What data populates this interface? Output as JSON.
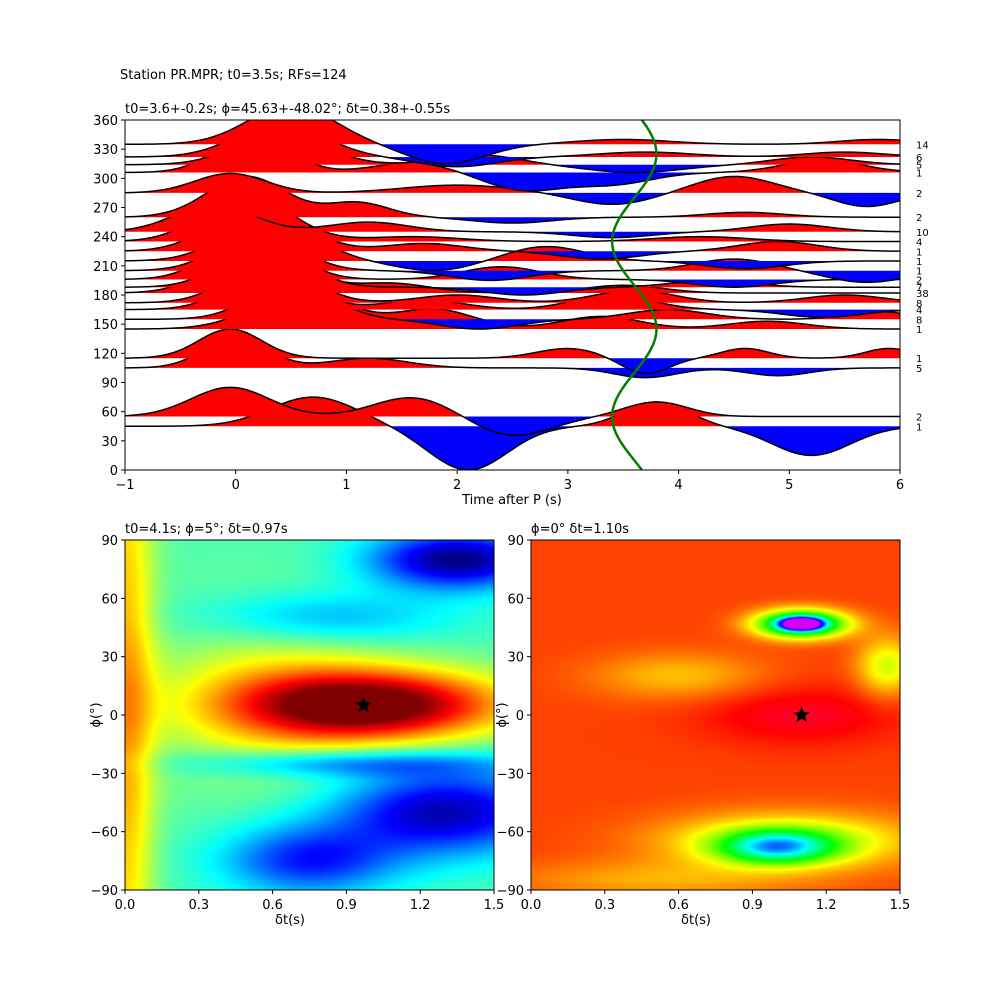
{
  "figure_title": "Station PR.MPR; t0=3.5s; RFs=124",
  "chart_data": [
    {
      "id": "rf-panel",
      "type": "line",
      "title": "t0=3.6+-0.2s; ϕ=45.63+-48.02°; δt=0.38+-0.55s",
      "xlabel": "Time after P (s)",
      "ylabel": "",
      "xlim": [
        -1,
        6
      ],
      "ylim": [
        0,
        360
      ],
      "xticks": [
        -1,
        0,
        1,
        2,
        3,
        4,
        5,
        6
      ],
      "yticks": [
        0,
        30,
        60,
        90,
        120,
        150,
        180,
        210,
        240,
        270,
        300,
        330,
        360
      ],
      "fill_positive": "#ff0000",
      "fill_negative": "#0000ff",
      "t0_curve": {
        "color": "#008000",
        "mean_time": 3.6,
        "amplitude": 0.2
      },
      "traces": [
        {
          "baz": 45,
          "count": "1",
          "pulses": [
            [
              0.7,
              1.0,
              30,
              0.55
            ],
            [
              2.1,
              -1.1,
              -45,
              0.5
            ],
            [
              3.8,
              0.4,
              25,
              0.4
            ],
            [
              5.2,
              -0.5,
              -30,
              0.5
            ]
          ]
        },
        {
          "baz": 55,
          "count": "2",
          "pulses": [
            [
              -0.05,
              1.0,
              30,
              0.5
            ],
            [
              1.6,
              0.6,
              20,
              0.5
            ],
            [
              2.5,
              -0.6,
              -20,
              0.5
            ],
            [
              3.8,
              0.3,
              15,
              0.4
            ]
          ]
        },
        {
          "baz": 105,
          "count": "5",
          "pulses": [
            [
              0.0,
              1.0,
              32,
              0.4
            ],
            [
              1.2,
              0.3,
              10,
              0.5
            ],
            [
              3.7,
              -0.6,
              -10,
              0.4
            ],
            [
              4.9,
              -0.3,
              -8,
              0.4
            ]
          ]
        },
        {
          "baz": 115,
          "count": "1",
          "pulses": [
            [
              -0.05,
              1.0,
              30,
              0.4
            ],
            [
              3.0,
              0.7,
              10,
              0.4
            ],
            [
              3.7,
              -0.8,
              -16,
              0.3
            ],
            [
              4.6,
              0.5,
              10,
              0.3
            ],
            [
              5.9,
              0.4,
              10,
              0.3
            ]
          ]
        },
        {
          "baz": 145,
          "count": "1",
          "pulses": [
            [
              0.6,
              1.0,
              38,
              0.6
            ],
            [
              1.8,
              0.7,
              20,
              0.5
            ],
            [
              3.3,
              0.5,
              13,
              0.5
            ],
            [
              4.8,
              0.3,
              8,
              0.5
            ]
          ]
        },
        {
          "baz": 155,
          "count": "8",
          "pulses": [
            [
              0.5,
              1.0,
              38,
              0.5
            ],
            [
              2.2,
              -0.5,
              -10,
              0.5
            ],
            [
              3.9,
              0.4,
              10,
              0.5
            ],
            [
              5.8,
              0.4,
              8,
              0.4
            ]
          ]
        },
        {
          "baz": 165,
          "count": "4",
          "pulses": [
            [
              0.3,
              1.0,
              40,
              0.5
            ],
            [
              1.7,
              0.4,
              10,
              0.5
            ],
            [
              3.4,
              0.5,
              15,
              0.5
            ],
            [
              5.3,
              -0.3,
              -8,
              0.5
            ]
          ]
        },
        {
          "baz": 172,
          "count": "8",
          "pulses": [
            [
              0.3,
              1.0,
              45,
              0.5
            ],
            [
              2.0,
              0.4,
              8,
              0.5
            ],
            [
              3.6,
              0.6,
              13,
              0.5
            ],
            [
              5.5,
              0.3,
              8,
              0.5
            ]
          ]
        },
        {
          "baz": 182,
          "count": "38",
          "pulses": [
            [
              0.2,
              1.0,
              48,
              0.55
            ],
            [
              1.4,
              0.4,
              10,
              0.5
            ],
            [
              3.5,
              0.5,
              8,
              0.5
            ]
          ]
        },
        {
          "baz": 188,
          "count": "7",
          "pulses": [
            [
              0.25,
              1.0,
              45,
              0.5
            ],
            [
              2.6,
              -0.4,
              -8,
              0.5
            ],
            [
              4.3,
              0.3,
              7,
              0.5
            ]
          ]
        },
        {
          "baz": 196,
          "count": "2",
          "pulses": [
            [
              0.15,
              1.0,
              48,
              0.5
            ],
            [
              2.4,
              0.6,
              13,
              0.5
            ],
            [
              4.5,
              -0.4,
              -8,
              0.5
            ]
          ]
        },
        {
          "baz": 205,
          "count": "1",
          "pulses": [
            [
              0.2,
              1.0,
              40,
              0.5
            ],
            [
              2.3,
              -0.3,
              -10,
              0.5
            ],
            [
              4.5,
              0.5,
              12,
              0.5
            ],
            [
              5.7,
              -0.6,
              -12,
              0.5
            ]
          ]
        },
        {
          "baz": 215,
          "count": "1",
          "pulses": [
            [
              0.3,
              1.0,
              45,
              0.55
            ],
            [
              1.8,
              -0.4,
              -10,
              0.5
            ],
            [
              2.8,
              0.6,
              15,
              0.5
            ],
            [
              4.6,
              -0.5,
              -8,
              0.5
            ]
          ]
        },
        {
          "baz": 225,
          "count": "1",
          "pulses": [
            [
              0.2,
              1.0,
              50,
              0.55
            ],
            [
              1.7,
              0.3,
              8,
              0.5
            ],
            [
              3.3,
              -0.3,
              -8,
              0.5
            ],
            [
              4.9,
              0.5,
              10,
              0.5
            ]
          ]
        },
        {
          "baz": 235,
          "count": "4",
          "pulses": [
            [
              0.1,
              1.0,
              48,
              0.55
            ],
            [
              1.6,
              0.2,
              5,
              0.6
            ],
            [
              4.2,
              0.2,
              5,
              0.6
            ]
          ]
        },
        {
          "baz": 245,
          "count": "10",
          "pulses": [
            [
              -0.2,
              1.0,
              28,
              0.5
            ],
            [
              1.2,
              0.3,
              10,
              0.5
            ],
            [
              3.4,
              -0.3,
              -6,
              0.5
            ],
            [
              5.0,
              0.3,
              8,
              0.5
            ]
          ]
        },
        {
          "baz": 260,
          "count": "2",
          "pulses": [
            [
              0.1,
              1.0,
              42,
              0.5
            ],
            [
              1.1,
              0.5,
              15,
              0.4
            ],
            [
              2.5,
              -0.3,
              -6,
              0.5
            ],
            [
              4.6,
              0.2,
              5,
              0.5
            ]
          ]
        },
        {
          "baz": 285,
          "count": "2",
          "pulses": [
            [
              -0.05,
              1.0,
              20,
              0.45
            ],
            [
              2.0,
              0.3,
              8,
              0.7
            ],
            [
              3.4,
              -0.4,
              -12,
              0.5
            ],
            [
              4.5,
              0.7,
              17,
              0.5
            ],
            [
              5.7,
              -0.6,
              -14,
              0.4
            ]
          ]
        },
        {
          "baz": 306,
          "count": "1",
          "pulses": [
            [
              0.15,
              1.0,
              40,
              0.45
            ],
            [
              1.6,
              0.4,
              10,
              0.5
            ],
            [
              2.6,
              -0.8,
              -18,
              0.5
            ],
            [
              3.4,
              -0.5,
              -12,
              0.5
            ],
            [
              5.3,
              0.6,
              13,
              0.5
            ]
          ]
        },
        {
          "baz": 314,
          "count": "5",
          "pulses": [
            [
              0.4,
              1.0,
              32,
              0.55
            ],
            [
              2.2,
              0.3,
              10,
              0.5
            ],
            [
              3.6,
              -0.4,
              -8,
              0.6
            ],
            [
              5.2,
              0.4,
              8,
              0.5
            ]
          ]
        },
        {
          "baz": 322,
          "count": "6",
          "pulses": [
            [
              0.4,
              1.0,
              35,
              0.55
            ],
            [
              2.0,
              -0.4,
              -10,
              0.5
            ],
            [
              3.7,
              0.3,
              5,
              0.6
            ],
            [
              5.5,
              0.2,
              5,
              0.5
            ]
          ]
        },
        {
          "baz": 335,
          "count": "14",
          "pulses": [
            [
              0.5,
              1.0,
              40,
              0.55
            ],
            [
              1.9,
              -0.8,
              -20,
              0.5
            ],
            [
              3.5,
              0.3,
              5,
              0.6
            ],
            [
              5.8,
              0.2,
              5,
              0.5
            ]
          ]
        }
      ]
    },
    {
      "id": "energy-map-left",
      "type": "heatmap",
      "title": "t0=4.1s; ϕ=5°; δt=0.97s",
      "xlabel": "δt(s)",
      "ylabel": "ϕ(°)",
      "xlim": [
        0,
        1.5
      ],
      "ylim": [
        -90,
        90
      ],
      "xticks": [
        0.0,
        0.3,
        0.6,
        0.9,
        1.2,
        1.5
      ],
      "yticks": [
        -90,
        -60,
        -30,
        0,
        30,
        60,
        90
      ],
      "colormap": "jet",
      "best": {
        "dt": 0.97,
        "phi": 5
      }
    },
    {
      "id": "energy-map-right",
      "type": "heatmap",
      "title": "ϕ=0° δt=1.10s",
      "xlabel": "δt(s)",
      "ylabel": "ϕ(°)",
      "xlim": [
        0,
        1.5
      ],
      "ylim": [
        -90,
        90
      ],
      "xticks": [
        0.0,
        0.3,
        0.6,
        0.9,
        1.2,
        1.5
      ],
      "yticks": [
        -90,
        -60,
        -30,
        0,
        30,
        60,
        90
      ],
      "colormap": "hsv-segment",
      "best": {
        "dt": 1.1,
        "phi": 0
      }
    }
  ]
}
